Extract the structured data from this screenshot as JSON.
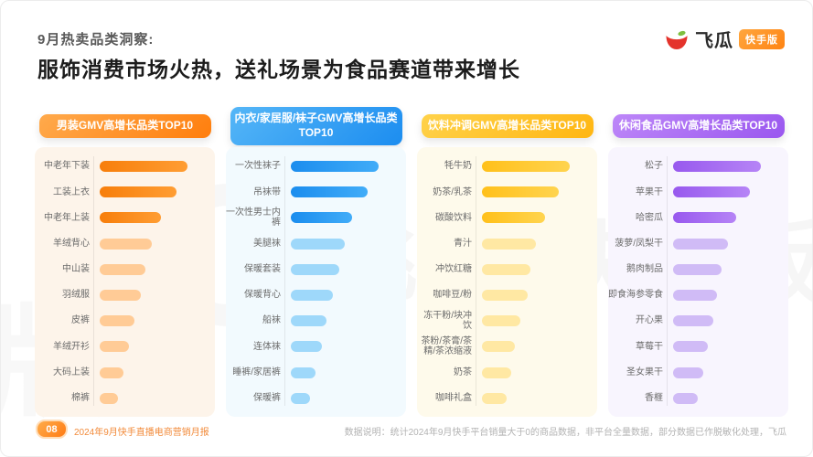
{
  "slide": {
    "kicker": "9月热卖品类洞察:",
    "title": "服饰消费市场火热，送礼场景为食品赛道带来增长",
    "logo": {
      "text": "飞瓜",
      "badge": "快手版"
    },
    "watermark": {
      "text": "飞瓜 快手版",
      "extra": "版"
    },
    "footer": {
      "page": "08",
      "report_title": "2024年9月快手直播电商营销月报",
      "data_note": "数据说明：统计2024年9月快手平台销量大于0的商品数据，非平台全量数据，部分数据已作脱敏化处理，飞瓜"
    }
  },
  "chart_data": [
    {
      "type": "bar",
      "orientation": "horizontal",
      "title": "男装GMV高增长品类TOP10",
      "note": "no numeric axis shown; values are bar lengths as % of top category",
      "categories": [
        "中老年下装",
        "工装上衣",
        "中老年上装",
        "羊绒背心",
        "中山装",
        "羽绒服",
        "皮裤",
        "羊绒开衫",
        "大码上装",
        "棉裤"
      ],
      "values": [
        100,
        88,
        70,
        59,
        52,
        47,
        40,
        33,
        27,
        21
      ],
      "colors": {
        "header_bg": [
          "#FFAA4C",
          "#FF7E0D"
        ],
        "card_bg": "#FDF4EA",
        "bar_strong": [
          "#F77E0B",
          "#FF9D33"
        ],
        "bar_light": "#FFCB96"
      }
    },
    {
      "type": "bar",
      "orientation": "horizontal",
      "title": "内衣/家居服/袜子GMV高增长品类TOP10",
      "note": "no numeric axis shown; values are bar lengths as % of top category",
      "categories": [
        "一次性袜子",
        "吊袜带",
        "一次性男士内裤",
        "美腿袜",
        "保暖套装",
        "保暖背心",
        "船袜",
        "连体袜",
        "睡裤/家居裤",
        "保暖裤"
      ],
      "values": [
        100,
        88,
        70,
        61,
        55,
        48,
        41,
        35,
        28,
        22
      ],
      "colors": {
        "header_bg": [
          "#55B6F7",
          "#1C8DF0"
        ],
        "card_bg": "#F2FAFE",
        "bar_strong": [
          "#1B8DEE",
          "#41ACF8"
        ],
        "bar_light": "#9ED8FA"
      }
    },
    {
      "type": "bar",
      "orientation": "horizontal",
      "title": "饮料冲调GMV高增长品类TOP10",
      "note": "no numeric axis shown; values are bar lengths as % of top category",
      "categories": [
        "牦牛奶",
        "奶茶/乳茶",
        "碳酸饮料",
        "青汁",
        "冲饮红糖",
        "咖啡豆/粉",
        "冻干粉/块冲饮",
        "茶粉/茶膏/茶精/茶浓缩液",
        "奶茶",
        "咖啡礼盒"
      ],
      "values": [
        100,
        88,
        72,
        61,
        55,
        52,
        44,
        38,
        33,
        28
      ],
      "colors": {
        "header_bg": [
          "#FFD24A",
          "#FFB612"
        ],
        "card_bg": "#FEFAEB",
        "bar_strong": [
          "#FFC01A",
          "#FFD44F"
        ],
        "bar_light": "#FFE8A3"
      }
    },
    {
      "type": "bar",
      "orientation": "horizontal",
      "title": "休闲食品GMV高增长品类TOP10",
      "note": "no numeric axis shown; values are bar lengths as % of top category",
      "categories": [
        "松子",
        "苹果干",
        "哈密瓜",
        "菠萝/凤梨干",
        "鹅肉制品",
        "即食海参零食",
        "开心果",
        "草莓干",
        "圣女果干",
        "香榧"
      ],
      "values": [
        100,
        88,
        72,
        63,
        55,
        50,
        46,
        40,
        34,
        28
      ],
      "colors": {
        "header_bg": [
          "#BD87F8",
          "#9A57EF"
        ],
        "card_bg": "#F8F5FE",
        "bar_strong": [
          "#9859EE",
          "#B684F6"
        ],
        "bar_light": "#D0BBF6"
      }
    }
  ]
}
